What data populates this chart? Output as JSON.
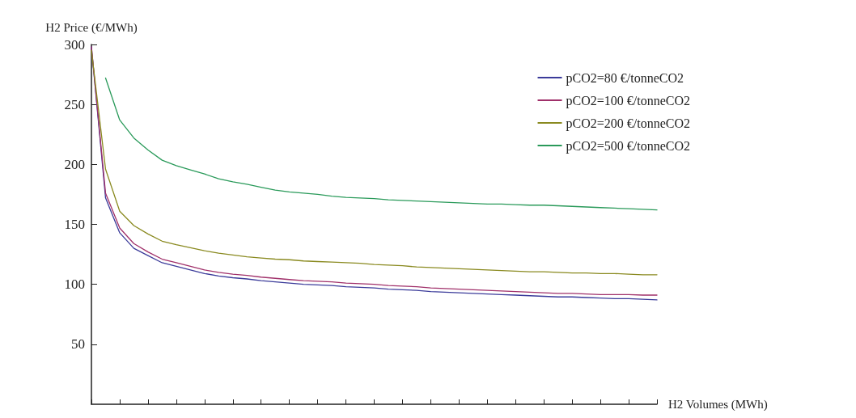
{
  "chart_data": {
    "type": "line",
    "xlabel": "H2 Volumes (MWh)",
    "ylabel": "H2 Price (€/MWh)",
    "categories": [
      null,
      null,
      null,
      null,
      null,
      null,
      null,
      null,
      null,
      null,
      null,
      null,
      null,
      null,
      null,
      null,
      null,
      null,
      null,
      null,
      null,
      null,
      null,
      null,
      null,
      null,
      null,
      null,
      null,
      null,
      null,
      null,
      null,
      null,
      null,
      null,
      null,
      null,
      null,
      null,
      null
    ],
    "ylim": [
      0,
      300
    ],
    "yticks": [
      50,
      100,
      150,
      200,
      250,
      300
    ],
    "tick_labels": "y",
    "grid": false,
    "legend": "top right",
    "marker": "none",
    "line_style": "solid",
    "series": [
      {
        "name": "pCO2=80 €/tonneCO2",
        "color": "#3b3b9a",
        "values": [
          298,
          172,
          143,
          130,
          124,
          118,
          115,
          112,
          109,
          107,
          105.5,
          104.5,
          103,
          102,
          101,
          100,
          99.5,
          99,
          98,
          97.5,
          97,
          96,
          95.5,
          95,
          94,
          93.5,
          93,
          92.5,
          92,
          91.5,
          91,
          90.5,
          90,
          89.5,
          89.5,
          89,
          88.5,
          88,
          88,
          87.5,
          87
        ]
      },
      {
        "name": "pCO2=100 €/tonneCO2",
        "color": "#a0306a",
        "values": [
          298,
          176,
          147,
          134,
          127,
          121,
          118,
          115,
          112,
          110,
          108.5,
          107.5,
          106,
          105,
          104,
          103,
          102.5,
          102,
          101,
          100.5,
          100,
          99,
          98.5,
          98,
          97,
          96.5,
          96,
          95.5,
          95,
          94.5,
          94,
          93.5,
          93,
          92.5,
          92.5,
          92,
          91.5,
          91.5,
          91.5,
          91,
          91
        ]
      },
      {
        "name": "pCO2=200 €/tonneCO2",
        "color": "#8a8a20",
        "values": [
          295,
          196,
          161,
          149,
          142,
          136,
          133,
          130.5,
          128,
          126,
          124.5,
          123,
          122,
          121,
          120.5,
          119.5,
          119,
          118.5,
          118,
          117.5,
          116.5,
          116,
          115.5,
          114.5,
          114,
          113.5,
          113,
          112.5,
          112,
          111.5,
          111,
          110.5,
          110.5,
          110,
          109.5,
          109.5,
          109,
          109,
          108.5,
          108,
          108
        ]
      },
      {
        "name": "pCO2=500 €/tonneCO2",
        "color": "#2a9a5a",
        "values": [
          null,
          272,
          237,
          222,
          212,
          203.5,
          199,
          195.5,
          192,
          188,
          185.5,
          183.5,
          181,
          178.5,
          177,
          176,
          175,
          173.5,
          172.5,
          172,
          171.5,
          170.5,
          170,
          169.5,
          169,
          168.5,
          168,
          167.5,
          167,
          167,
          166.5,
          166,
          166,
          165.5,
          165,
          164.5,
          164,
          163.5,
          163,
          162.5,
          162
        ]
      }
    ]
  }
}
